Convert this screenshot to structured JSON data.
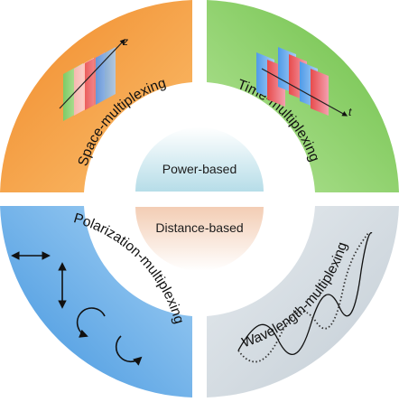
{
  "center": {
    "top_label": "Power-based",
    "bottom_label": "Distance-based"
  },
  "quadrants": [
    {
      "label": "Space-multiplexing",
      "axis_label": "z",
      "color": "#f6a64a"
    },
    {
      "label": "Time-multiplexing",
      "axis_label": "t",
      "color": "#8fd06c"
    },
    {
      "label": "Polarization-multiplexing",
      "color": "#6ab0ea"
    },
    {
      "label": "Wavelength-multiplexing",
      "color": "#cfd8df"
    }
  ],
  "center_colors": {
    "top": "#bfe3ec",
    "bottom": "#f6d8c4"
  }
}
